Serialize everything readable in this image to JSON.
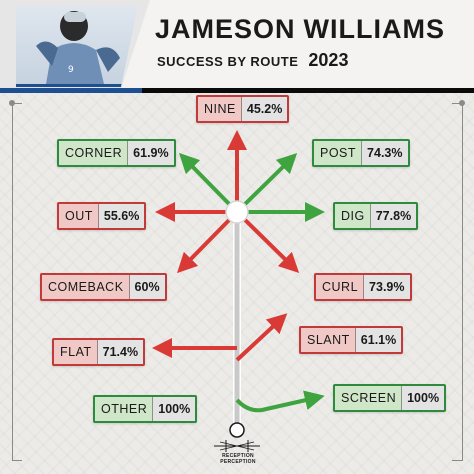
{
  "header": {
    "first_name": "JAMESON",
    "last_name": "WILLIAMS",
    "subtitle": "SUCCESS BY ROUTE",
    "year": "2023"
  },
  "colors": {
    "success_high": "#2e8b3e",
    "success_low": "#c03a3a",
    "team_blue": "#1d4f91"
  },
  "routes": [
    {
      "name": "NINE",
      "pct": "45.2%",
      "color": "red"
    },
    {
      "name": "CORNER",
      "pct": "61.9%",
      "color": "green"
    },
    {
      "name": "POST",
      "pct": "74.3%",
      "color": "green"
    },
    {
      "name": "OUT",
      "pct": "55.6%",
      "color": "red"
    },
    {
      "name": "DIG",
      "pct": "77.8%",
      "color": "green"
    },
    {
      "name": "COMEBACK",
      "pct": "60%",
      "color": "red"
    },
    {
      "name": "CURL",
      "pct": "73.9%",
      "color": "red"
    },
    {
      "name": "SLANT",
      "pct": "61.1%",
      "color": "red"
    },
    {
      "name": "FLAT",
      "pct": "71.4%",
      "color": "red"
    },
    {
      "name": "OTHER",
      "pct": "100%",
      "color": "green"
    },
    {
      "name": "SCREEN",
      "pct": "100%",
      "color": "green"
    }
  ],
  "logo": {
    "text": "RECEPTION PERCEPTION",
    "icon": "football-logo-icon"
  }
}
